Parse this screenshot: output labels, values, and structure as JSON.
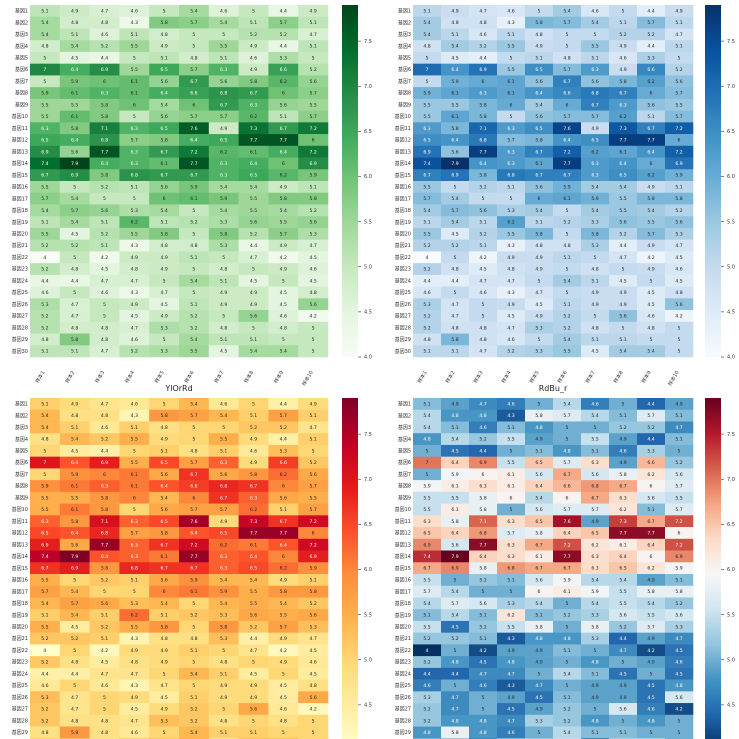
{
  "chart_data": [
    {
      "type": "heatmap",
      "title": "",
      "colormap": "Greens",
      "rows": [
        "基因1",
        "基因2",
        "基因3",
        "基因4",
        "基因5",
        "基因6",
        "基因7",
        "基因8",
        "基因9",
        "基因10",
        "基因11",
        "基因12",
        "基因13",
        "基因14",
        "基因15",
        "基因16",
        "基因17",
        "基因18",
        "基因19",
        "基因20",
        "基因21",
        "基因22",
        "基因23",
        "基因24",
        "基因25",
        "基因26",
        "基因27",
        "基因28",
        "基因29",
        "基因30"
      ],
      "columns": [
        "样本1",
        "样本2",
        "样本3",
        "样本4",
        "样本5",
        "样本6",
        "样本7",
        "样本8",
        "样本9",
        "样本10"
      ],
      "values": [
        [
          5.1,
          4.9,
          4.7,
          4.6,
          5,
          5.4,
          4.6,
          5,
          4.4,
          4.9
        ],
        [
          5.4,
          4.8,
          4.8,
          4.3,
          5.8,
          5.7,
          5.4,
          5.1,
          5.7,
          5.1
        ],
        [
          5.4,
          5.1,
          4.6,
          5.1,
          4.8,
          5,
          5,
          5.2,
          5.2,
          4.7
        ],
        [
          4.8,
          5.4,
          5.2,
          5.5,
          4.9,
          5,
          5.5,
          4.9,
          4.4,
          5.1
        ],
        [
          5,
          4.5,
          4.4,
          5,
          5.1,
          4.8,
          5.1,
          4.6,
          5.3,
          5
        ],
        [
          7,
          6.4,
          6.9,
          5.5,
          6.5,
          5.7,
          6.3,
          4.9,
          6.6,
          5.2
        ],
        [
          5,
          5.9,
          6,
          6.1,
          5.6,
          6.7,
          5.6,
          5.8,
          6.2,
          5.6
        ],
        [
          5.9,
          6.1,
          6.3,
          6.1,
          6.4,
          6.6,
          6.8,
          6.7,
          6,
          5.7
        ],
        [
          5.5,
          5.5,
          5.8,
          6,
          5.4,
          6,
          6.7,
          6.3,
          5.6,
          5.5
        ],
        [
          5.5,
          6.1,
          5.8,
          5,
          5.6,
          5.7,
          5.7,
          6.2,
          5.1,
          5.7
        ],
        [
          6.3,
          5.8,
          7.1,
          6.3,
          6.5,
          7.6,
          4.9,
          7.3,
          6.7,
          7.2
        ],
        [
          6.5,
          6.4,
          6.8,
          5.7,
          5.8,
          6.4,
          6.5,
          7.7,
          7.7,
          6
        ],
        [
          6.9,
          5.6,
          7.7,
          6.3,
          6.7,
          7.2,
          6.2,
          6.1,
          6.4,
          7.2
        ],
        [
          7.4,
          7.9,
          6.4,
          6.3,
          6.1,
          7.7,
          6.3,
          6.4,
          6,
          6.9
        ],
        [
          6.7,
          6.9,
          5.8,
          6.8,
          6.7,
          6.7,
          6.3,
          6.5,
          6.2,
          5.9
        ],
        [
          5.5,
          5,
          5.2,
          5.1,
          5.6,
          5.9,
          5.4,
          5.4,
          4.9,
          5.1
        ],
        [
          5.7,
          5.4,
          5,
          5,
          6,
          6.1,
          5.9,
          5.5,
          5.8,
          5.8
        ],
        [
          5.4,
          5.7,
          5.6,
          5.3,
          5.4,
          5,
          5.4,
          5.5,
          5.4,
          5.2
        ],
        [
          5.1,
          5.4,
          5.1,
          6.2,
          5.1,
          5.2,
          5.3,
          5.6,
          5.5,
          5.6
        ],
        [
          5.5,
          4.5,
          5.2,
          5.5,
          5.8,
          5,
          5.8,
          5.2,
          5.7,
          5.3
        ],
        [
          5.2,
          5.2,
          5.1,
          4.3,
          4.8,
          4.8,
          5.3,
          4.4,
          4.9,
          4.7
        ],
        [
          4,
          5,
          4.2,
          4.9,
          4.9,
          5.1,
          5,
          4.7,
          4.2,
          4.5
        ],
        [
          5.2,
          4.8,
          4.5,
          4.8,
          4.9,
          5,
          4.8,
          5,
          4.9,
          4.6
        ],
        [
          4.4,
          4.4,
          4.7,
          4.7,
          5,
          5.4,
          5.1,
          4.5,
          5,
          4.5
        ],
        [
          4.6,
          5,
          4.6,
          4.3,
          4.7,
          5,
          4.9,
          4.9,
          4.5,
          4.8
        ],
        [
          5.3,
          4.7,
          5,
          4.9,
          4.5,
          5.1,
          4.9,
          4.9,
          4.5,
          5.6
        ],
        [
          5.2,
          4.7,
          5,
          4.5,
          4.9,
          5.2,
          5,
          5.6,
          4.6,
          4.2
        ],
        [
          5.2,
          4.8,
          4.8,
          4.7,
          5.3,
          5.2,
          4.8,
          5,
          4.8,
          5
        ],
        [
          4.8,
          5.8,
          4.8,
          4.6,
          5,
          5.4,
          5.1,
          5.1,
          5,
          5
        ],
        [
          5.1,
          5.1,
          4.7,
          5.2,
          5.3,
          5.5,
          4.5,
          5.4,
          5.4,
          5
        ]
      ],
      "vmin": 4.0,
      "vmax": 7.9,
      "colorbar_ticks": [
        4.0,
        4.5,
        5.0,
        5.5,
        6.0,
        6.5,
        7.0,
        7.5
      ]
    },
    {
      "type": "heatmap",
      "title": "",
      "colormap": "Blues",
      "rows": [
        "基因1",
        "基因2",
        "基因3",
        "基因4",
        "基因5",
        "基因6",
        "基因7",
        "基因8",
        "基因9",
        "基因10",
        "基因11",
        "基因12",
        "基因13",
        "基因14",
        "基因15",
        "基因16",
        "基因17",
        "基因18",
        "基因19",
        "基因20",
        "基因21",
        "基因22",
        "基因23",
        "基因24",
        "基因25",
        "基因26",
        "基因27",
        "基因28",
        "基因29",
        "基因30"
      ],
      "columns": [
        "样本1",
        "样本2",
        "样本3",
        "样本4",
        "样本5",
        "样本6",
        "样本7",
        "样本8",
        "样本9",
        "样本10"
      ],
      "values": "same-as-panel-1",
      "vmin": 4.0,
      "vmax": 7.9,
      "colorbar_ticks": [
        4.0,
        4.5,
        5.0,
        5.5,
        6.0,
        6.5,
        7.0,
        7.5
      ]
    },
    {
      "type": "heatmap",
      "title": "YlOrRd",
      "colormap": "YlOrRd",
      "rows": [
        "基因1",
        "基因2",
        "基因3",
        "基因4",
        "基因5",
        "基因6",
        "基因7",
        "基因8",
        "基因9",
        "基因10",
        "基因11",
        "基因12",
        "基因13",
        "基因14",
        "基因15",
        "基因16",
        "基因17",
        "基因18",
        "基因19",
        "基因20",
        "基因21",
        "基因22",
        "基因23",
        "基因24",
        "基因25",
        "基因26",
        "基因27",
        "基因28",
        "基因29",
        "基因30"
      ],
      "columns": [],
      "values": "same-as-panel-1",
      "vmin": 4.0,
      "vmax": 7.9,
      "colorbar_ticks": [
        4.5,
        5.0,
        5.5,
        6.0,
        6.5,
        7.0,
        7.5
      ]
    },
    {
      "type": "heatmap",
      "title": "RdBu_r",
      "colormap": "RdBu_r",
      "rows": [
        "基因1",
        "基因2",
        "基因3",
        "基因4",
        "基因5",
        "基因6",
        "基因7",
        "基因8",
        "基因9",
        "基因10",
        "基因11",
        "基因12",
        "基因13",
        "基因14",
        "基因15",
        "基因16",
        "基因17",
        "基因18",
        "基因19",
        "基因20",
        "基因21",
        "基因22",
        "基因23",
        "基因24",
        "基因25",
        "基因26",
        "基因27",
        "基因28",
        "基因29",
        "基因30"
      ],
      "columns": [],
      "values": "same-as-panel-1",
      "vmin": 4.0,
      "vmax": 7.9,
      "colorbar_ticks": [
        4.5,
        5.0,
        5.5,
        6.0,
        6.5,
        7.0,
        7.5
      ]
    }
  ],
  "colors": {
    "Greens": [
      "#f7fcf5",
      "#e5f5e0",
      "#c7e9c0",
      "#a1d99b",
      "#74c476",
      "#41ab5d",
      "#238b45",
      "#006d2c",
      "#00441b"
    ],
    "Blues": [
      "#f7fbff",
      "#deebf7",
      "#c6dbef",
      "#9ecae1",
      "#6baed6",
      "#4292c6",
      "#2171b5",
      "#08519c",
      "#08306b"
    ],
    "YlOrRd": [
      "#ffffcc",
      "#ffeda0",
      "#fed976",
      "#feb24c",
      "#fd8d3c",
      "#fc4e2a",
      "#e31a1c",
      "#bd0026",
      "#800026"
    ],
    "RdBu_r": [
      "#053061",
      "#2166ac",
      "#4393c3",
      "#92c5de",
      "#d1e5f0",
      "#f7f7f7",
      "#fddbc7",
      "#f4a582",
      "#d6604d",
      "#b2182b",
      "#67001f"
    ]
  }
}
